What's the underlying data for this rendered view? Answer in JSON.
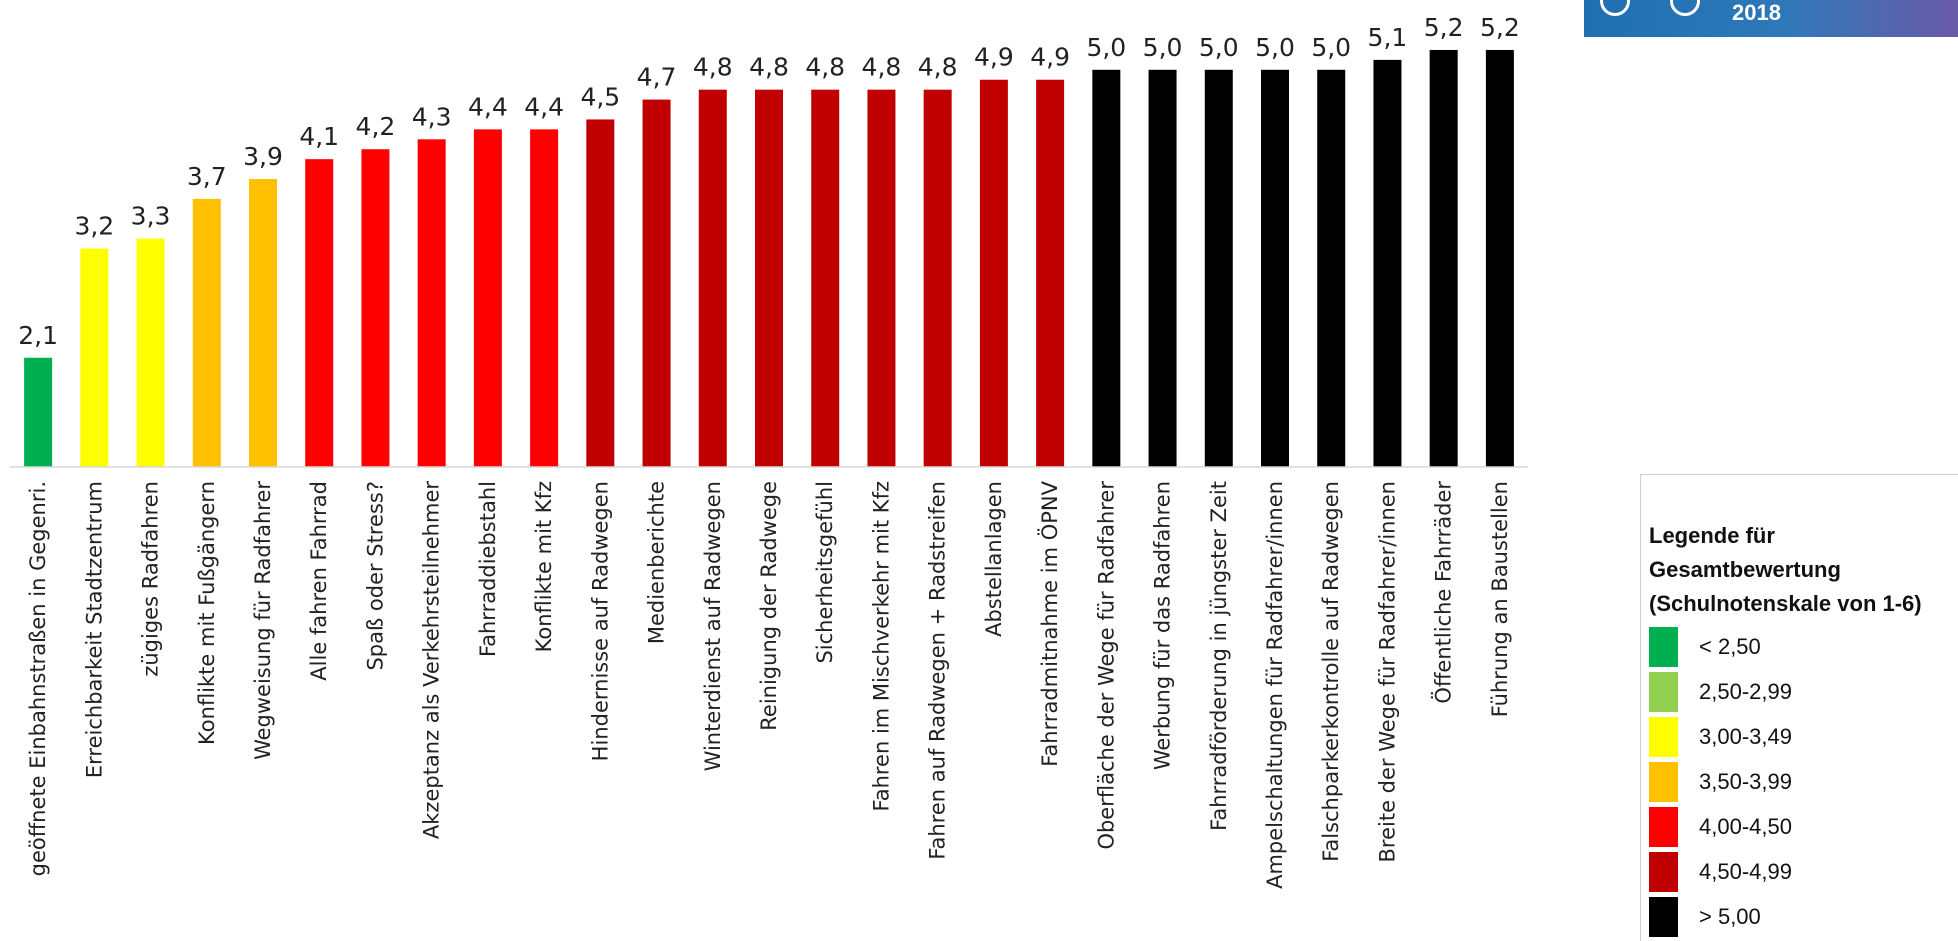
{
  "chart_data": {
    "type": "bar",
    "categories": [
      "geöffnete Einbahnstraßen in Gegenri.",
      "Erreichbarkeit Stadtzentrum",
      "zügiges Radfahren",
      "Konflikte mit Fußgängern",
      "Wegweisung für Radfahrer",
      "Alle fahren Fahrrad",
      "Spaß oder Stress?",
      "Akzeptanz als Verkehrsteilnehmer",
      "Fahrraddiebstahl",
      "Konflikte mit Kfz",
      "Hindernisse auf Radwegen",
      "Medienberichte",
      "Winterdienst auf Radwegen",
      "Reinigung der Radwege",
      "Sicherheitsgefühl",
      "Fahren im Mischverkehr mit Kfz",
      "Fahren auf Radwegen  + Radstreifen",
      "Abstellanlagen",
      "Fahrradmitnahme im ÖPNV",
      "Oberfläche der Wege für Radfahrer",
      "Werbung für das Radfahren",
      "Fahrradförderung in jüngster Zeit",
      "Ampelschaltungen für Radfahrer/innen",
      "Falschparkerkontrolle auf Radwegen",
      "Breite der Wege für Radfahrer/innen",
      "Öffentliche Fahrräder",
      "Führung an Baustellen"
    ],
    "values": [
      2.1,
      3.2,
      3.3,
      3.7,
      3.9,
      4.1,
      4.2,
      4.3,
      4.4,
      4.4,
      4.5,
      4.7,
      4.8,
      4.8,
      4.8,
      4.8,
      4.8,
      4.9,
      4.9,
      5.0,
      5.0,
      5.0,
      5.0,
      5.0,
      5.1,
      5.2,
      5.2
    ],
    "value_labels": [
      "2,1",
      "3,2",
      "3,3",
      "3,7",
      "3,9",
      "4,1",
      "4,2",
      "4,3",
      "4,4",
      "4,4",
      "4,5",
      "4,7",
      "4,8",
      "4,8",
      "4,8",
      "4,8",
      "4,8",
      "4,9",
      "4,9",
      "5,0",
      "5,0",
      "5,0",
      "5,0",
      "5,0",
      "5,1",
      "5,2",
      "5,2"
    ],
    "ylim": [
      1,
      6
    ],
    "grid": false,
    "title": "",
    "xlabel": "",
    "ylabel": ""
  },
  "legend": {
    "title_lines": [
      "Legende für",
      "Gesamtbewertung",
      "(Schulnotenskale von 1-6)"
    ],
    "items": [
      {
        "label": "< 2,50",
        "color": "#00b050"
      },
      {
        "label": "2,50-2,99",
        "color": "#92d050"
      },
      {
        "label": "3,00-3,49",
        "color": "#ffff00"
      },
      {
        "label": "3,50-3,99",
        "color": "#ffc000"
      },
      {
        "label": "4,00-4,50",
        "color": "#ff0000"
      },
      {
        "label": "4,50-4,99",
        "color": "#c00000"
      },
      {
        "label": "> 5,00",
        "color": "#000000"
      }
    ]
  },
  "badge": {
    "year": "2018",
    "color": "#1f6fb2"
  }
}
